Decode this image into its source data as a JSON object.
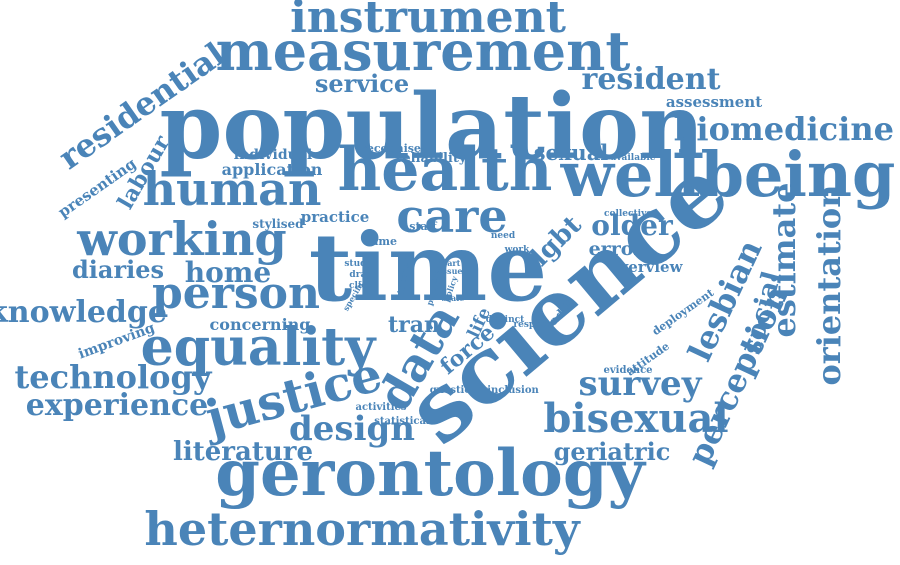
{
  "word_color": "#4a84b8",
  "background_color": "#ffffff",
  "words": [
    {
      "text": "instrument"
    },
    {
      "text": "measurement"
    },
    {
      "text": "service"
    },
    {
      "text": "resident"
    },
    {
      "text": "residential"
    },
    {
      "text": "population"
    },
    {
      "text": "assessment"
    },
    {
      "text": "biomedicine"
    },
    {
      "text": "labour"
    },
    {
      "text": "presenting"
    },
    {
      "text": "individual"
    },
    {
      "text": "recognise"
    },
    {
      "text": "reliability"
    },
    {
      "text": "sexual"
    },
    {
      "text": "available"
    },
    {
      "text": "application"
    },
    {
      "text": "health"
    },
    {
      "text": "wellbeing"
    },
    {
      "text": "human"
    },
    {
      "text": "care"
    },
    {
      "text": "stylised"
    },
    {
      "text": "practice"
    },
    {
      "text": "staff"
    },
    {
      "text": "collective"
    },
    {
      "text": "older"
    },
    {
      "text": "working"
    },
    {
      "text": "same"
    },
    {
      "text": "need"
    },
    {
      "text": "lgbt"
    },
    {
      "text": "error"
    },
    {
      "text": "estimate"
    },
    {
      "text": "orientation"
    },
    {
      "text": "time"
    },
    {
      "text": "work"
    },
    {
      "text": "diaries"
    },
    {
      "text": "home"
    },
    {
      "text": "study"
    },
    {
      "text": "drag"
    },
    {
      "text": "click"
    },
    {
      "text": "interest"
    },
    {
      "text": "overview"
    },
    {
      "text": "person"
    },
    {
      "text": "knowledge"
    },
    {
      "text": "lesbian"
    },
    {
      "text": "social"
    },
    {
      "text": "science"
    },
    {
      "text": "concerning"
    },
    {
      "text": "tran"
    },
    {
      "text": "life"
    },
    {
      "text": "distinct"
    },
    {
      "text": "respect"
    },
    {
      "text": "caddi"
    },
    {
      "text": "deployment"
    },
    {
      "text": "improving"
    },
    {
      "text": "equality"
    },
    {
      "text": "data"
    },
    {
      "text": "force"
    },
    {
      "text": "attitude"
    },
    {
      "text": "perception"
    },
    {
      "text": "technology"
    },
    {
      "text": "evidence"
    },
    {
      "text": "survey"
    },
    {
      "text": "justice"
    },
    {
      "text": "experience"
    },
    {
      "text": "question"
    },
    {
      "text": "inclusion"
    },
    {
      "text": "activities"
    },
    {
      "text": "statistical"
    },
    {
      "text": "bisexual"
    },
    {
      "text": "design"
    },
    {
      "text": "literature"
    },
    {
      "text": "geriatric"
    },
    {
      "text": "gerontology"
    },
    {
      "text": "heternormativity"
    },
    {
      "text": "specific"
    },
    {
      "text": "paper"
    },
    {
      "text": "policy"
    },
    {
      "text": "scale"
    },
    {
      "text": "trend"
    },
    {
      "text": "issue"
    },
    {
      "text": "part"
    }
  ]
}
